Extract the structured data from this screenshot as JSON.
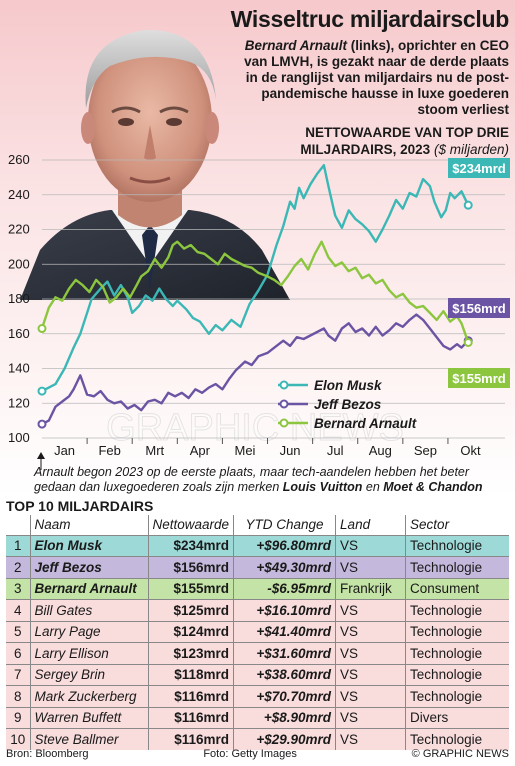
{
  "title": "Wisseltruc miljardairsclub",
  "subtitle": {
    "name": "Bernard Arnault",
    "rest": " (links), oprichter en CEO van LMVH, is gezakt naar de derde plaats in de ranglijst van miljardairs nu de post-pandemische hausse in luxe goederen stoom verliest"
  },
  "chart_heading": {
    "line": "NETTOWAARDE VAN TOP DRIE MILJARDAIRS, 2023",
    "unit": "($ miljarden)"
  },
  "colors": {
    "musk": "#3bb8b6",
    "bezos": "#6b54a3",
    "arnault": "#8cc63f",
    "grid": "#b9b9b9"
  },
  "chart_data": {
    "type": "line",
    "title": "NETTOWAARDE VAN TOP DRIE MILJARDAIRS, 2023",
    "ylabel": "($ miljarden)",
    "xlabel": "",
    "ylim": [
      100,
      260
    ],
    "yticks": [
      100,
      120,
      140,
      160,
      180,
      200,
      220,
      240,
      260
    ],
    "months": [
      "Jan",
      "Feb",
      "Mrt",
      "Apr",
      "Mei",
      "Jun",
      "Jul",
      "Aug",
      "Sep",
      "Okt"
    ],
    "x_range": [
      0,
      9.6
    ],
    "grid": true,
    "legend_placement": "bottom-right",
    "series": [
      {
        "key": "musk",
        "name": "Elon Musk",
        "end_label": "$234mrd",
        "values": [
          [
            0.0,
            127
          ],
          [
            0.15,
            129
          ],
          [
            0.3,
            131
          ],
          [
            0.5,
            140
          ],
          [
            0.7,
            152
          ],
          [
            0.85,
            160
          ],
          [
            1.0,
            172
          ],
          [
            1.1,
            180
          ],
          [
            1.3,
            186
          ],
          [
            1.45,
            190
          ],
          [
            1.6,
            182
          ],
          [
            1.75,
            188
          ],
          [
            1.9,
            181
          ],
          [
            2.0,
            172
          ],
          [
            2.15,
            176
          ],
          [
            2.3,
            182
          ],
          [
            2.45,
            179
          ],
          [
            2.6,
            186
          ],
          [
            2.75,
            180
          ],
          [
            2.9,
            176
          ],
          [
            3.0,
            179
          ],
          [
            3.2,
            174
          ],
          [
            3.35,
            169
          ],
          [
            3.5,
            167
          ],
          [
            3.7,
            160
          ],
          [
            3.85,
            165
          ],
          [
            4.0,
            162
          ],
          [
            4.2,
            168
          ],
          [
            4.4,
            164
          ],
          [
            4.6,
            177
          ],
          [
            4.8,
            185
          ],
          [
            5.0,
            194
          ],
          [
            5.2,
            211
          ],
          [
            5.35,
            222
          ],
          [
            5.5,
            236
          ],
          [
            5.6,
            232
          ],
          [
            5.7,
            244
          ],
          [
            5.8,
            238
          ],
          [
            5.95,
            246
          ],
          [
            6.1,
            252
          ],
          [
            6.25,
            257
          ],
          [
            6.35,
            245
          ],
          [
            6.5,
            228
          ],
          [
            6.65,
            221
          ],
          [
            6.8,
            231
          ],
          [
            6.95,
            226
          ],
          [
            7.1,
            223
          ],
          [
            7.25,
            219
          ],
          [
            7.4,
            213
          ],
          [
            7.55,
            220
          ],
          [
            7.7,
            228
          ],
          [
            7.85,
            237
          ],
          [
            8.0,
            232
          ],
          [
            8.15,
            241
          ],
          [
            8.3,
            239
          ],
          [
            8.45,
            249
          ],
          [
            8.6,
            245
          ],
          [
            8.7,
            236
          ],
          [
            8.85,
            227
          ],
          [
            8.95,
            231
          ],
          [
            9.05,
            241
          ],
          [
            9.15,
            238
          ],
          [
            9.3,
            242
          ],
          [
            9.45,
            234
          ]
        ]
      },
      {
        "key": "bezos",
        "name": "Jeff Bezos",
        "end_label": "$156mrd",
        "values": [
          [
            0.0,
            108
          ],
          [
            0.15,
            110
          ],
          [
            0.3,
            118
          ],
          [
            0.45,
            121
          ],
          [
            0.6,
            124
          ],
          [
            0.7,
            128
          ],
          [
            0.85,
            136
          ],
          [
            1.0,
            125
          ],
          [
            1.15,
            124
          ],
          [
            1.3,
            127
          ],
          [
            1.45,
            122
          ],
          [
            1.6,
            120
          ],
          [
            1.75,
            121
          ],
          [
            1.9,
            117
          ],
          [
            2.05,
            119
          ],
          [
            2.2,
            116
          ],
          [
            2.35,
            121
          ],
          [
            2.5,
            122
          ],
          [
            2.65,
            120
          ],
          [
            2.8,
            126
          ],
          [
            2.95,
            124
          ],
          [
            3.1,
            126
          ],
          [
            3.25,
            123
          ],
          [
            3.4,
            128
          ],
          [
            3.55,
            126
          ],
          [
            3.7,
            129
          ],
          [
            3.85,
            131
          ],
          [
            4.0,
            128
          ],
          [
            4.15,
            134
          ],
          [
            4.3,
            139
          ],
          [
            4.5,
            144
          ],
          [
            4.65,
            142
          ],
          [
            4.8,
            147
          ],
          [
            5.0,
            149
          ],
          [
            5.2,
            153
          ],
          [
            5.35,
            156
          ],
          [
            5.5,
            153
          ],
          [
            5.65,
            158
          ],
          [
            5.8,
            157
          ],
          [
            5.95,
            159
          ],
          [
            6.1,
            161
          ],
          [
            6.25,
            163
          ],
          [
            6.35,
            159
          ],
          [
            6.5,
            156
          ],
          [
            6.65,
            163
          ],
          [
            6.8,
            166
          ],
          [
            6.95,
            161
          ],
          [
            7.1,
            163
          ],
          [
            7.25,
            159
          ],
          [
            7.4,
            164
          ],
          [
            7.55,
            159
          ],
          [
            7.7,
            162
          ],
          [
            7.85,
            166
          ],
          [
            8.0,
            164
          ],
          [
            8.15,
            168
          ],
          [
            8.3,
            171
          ],
          [
            8.45,
            168
          ],
          [
            8.6,
            163
          ],
          [
            8.75,
            158
          ],
          [
            8.9,
            153
          ],
          [
            9.05,
            151
          ],
          [
            9.2,
            154
          ],
          [
            9.3,
            152
          ],
          [
            9.45,
            156
          ]
        ]
      },
      {
        "key": "arnault",
        "name": "Bernard Arnault",
        "end_label": "$155mrd",
        "values": [
          [
            0.0,
            163
          ],
          [
            0.15,
            175
          ],
          [
            0.3,
            181
          ],
          [
            0.45,
            179
          ],
          [
            0.6,
            186
          ],
          [
            0.75,
            191
          ],
          [
            0.9,
            188
          ],
          [
            1.05,
            184
          ],
          [
            1.2,
            191
          ],
          [
            1.35,
            187
          ],
          [
            1.5,
            178
          ],
          [
            1.65,
            181
          ],
          [
            1.8,
            186
          ],
          [
            1.95,
            181
          ],
          [
            2.1,
            188
          ],
          [
            2.2,
            193
          ],
          [
            2.35,
            196
          ],
          [
            2.5,
            203
          ],
          [
            2.65,
            198
          ],
          [
            2.8,
            204
          ],
          [
            2.9,
            211
          ],
          [
            3.0,
            213
          ],
          [
            3.15,
            209
          ],
          [
            3.3,
            211
          ],
          [
            3.45,
            207
          ],
          [
            3.6,
            206
          ],
          [
            3.75,
            203
          ],
          [
            3.9,
            200
          ],
          [
            4.05,
            206
          ],
          [
            4.2,
            203
          ],
          [
            4.35,
            201
          ],
          [
            4.5,
            199
          ],
          [
            4.65,
            198
          ],
          [
            4.8,
            195
          ],
          [
            5.0,
            193
          ],
          [
            5.15,
            191
          ],
          [
            5.3,
            188
          ],
          [
            5.45,
            193
          ],
          [
            5.6,
            199
          ],
          [
            5.75,
            203
          ],
          [
            5.9,
            197
          ],
          [
            6.05,
            206
          ],
          [
            6.2,
            213
          ],
          [
            6.35,
            204
          ],
          [
            6.5,
            199
          ],
          [
            6.65,
            201
          ],
          [
            6.8,
            196
          ],
          [
            6.95,
            198
          ],
          [
            7.1,
            192
          ],
          [
            7.25,
            194
          ],
          [
            7.4,
            189
          ],
          [
            7.55,
            191
          ],
          [
            7.7,
            185
          ],
          [
            7.85,
            181
          ],
          [
            8.0,
            183
          ],
          [
            8.15,
            178
          ],
          [
            8.3,
            175
          ],
          [
            8.45,
            176
          ],
          [
            8.6,
            172
          ],
          [
            8.75,
            168
          ],
          [
            8.9,
            173
          ],
          [
            9.05,
            167
          ],
          [
            9.2,
            170
          ],
          [
            9.3,
            166
          ],
          [
            9.45,
            155
          ]
        ]
      }
    ]
  },
  "note": {
    "text": "Arnault begon 2023 op de eerste plaats, maar tech-aandelen hebben het beter gedaan dan luxegoederen zoals zijn merken ",
    "brand1": "Louis Vuitton",
    "and": " en ",
    "brand2": "Moet & Chandon"
  },
  "table": {
    "title": "TOP 10 MILJARDAIRS",
    "headers": [
      "",
      "Naam",
      "Nettowaarde",
      "YTD Change",
      "Land",
      "Sector"
    ],
    "rows": [
      [
        "1",
        "Elon Musk",
        "$234mrd",
        "+$96.80mrd",
        "VS",
        "Technologie"
      ],
      [
        "2",
        "Jeff Bezos",
        "$156mrd",
        "+$49.30mrd",
        "VS",
        "Technologie"
      ],
      [
        "3",
        "Bernard Arnault",
        "$155mrd",
        "-$6.95mrd",
        "Frankrijk",
        "Consument"
      ],
      [
        "4",
        "Bill Gates",
        "$125mrd",
        "+$16.10mrd",
        "VS",
        "Technologie"
      ],
      [
        "5",
        "Larry Page",
        "$124mrd",
        "+$41.40mrd",
        "VS",
        "Technologie"
      ],
      [
        "6",
        "Larry Ellison",
        "$123mrd",
        "+$31.60mrd",
        "VS",
        "Technologie"
      ],
      [
        "7",
        "Sergey Brin",
        "$118mrd",
        "+$38.60mrd",
        "VS",
        "Technologie"
      ],
      [
        "8",
        "Mark Zuckerberg",
        "$116mrd",
        "+$70.70mrd",
        "VS",
        "Technologie"
      ],
      [
        "9",
        "Warren Buffett",
        "$116mrd",
        "+$8.90mrd",
        "VS",
        "Divers"
      ],
      [
        "10",
        "Steve Ballmer",
        "$116mrd",
        "+$29.90mrd",
        "VS",
        "Technologie"
      ]
    ]
  },
  "footer": {
    "source": "Bron: Bloomberg",
    "photo": "Foto: Getty Images",
    "credit": "© GRAPHIC NEWS"
  },
  "watermark": "GRAPHIC NEWS"
}
